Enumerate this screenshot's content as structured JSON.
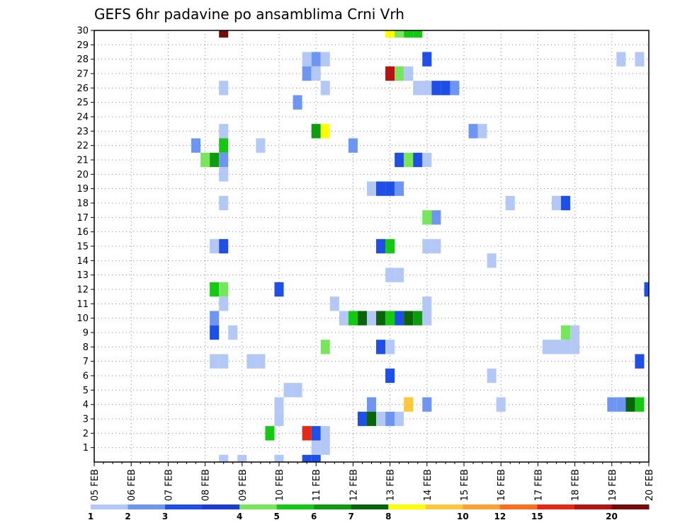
{
  "chart_data": {
    "type": "heatmap",
    "title": "GEFS 6hr padavine po ansamblima Crni Vrh",
    "xlabel": "",
    "ylabel": "",
    "x_tick_labels": [
      "05 FEB",
      "06 FEB",
      "07 FEB",
      "08 FEB",
      "09 FEB",
      "10 FEB",
      "11 FEB",
      "12 FEB",
      "13 FEB",
      "14 FEB",
      "15 FEB",
      "16 FEB",
      "17 FEB",
      "18 FEB",
      "19 FEB",
      "20 FEB"
    ],
    "y_tick_labels": [
      "1",
      "2",
      "3",
      "4",
      "5",
      "6",
      "7",
      "8",
      "9",
      "10",
      "11",
      "12",
      "13",
      "14",
      "15",
      "16",
      "17",
      "18",
      "19",
      "20",
      "21",
      "22",
      "23",
      "24",
      "25",
      "26",
      "27",
      "28",
      "29",
      "30"
    ],
    "x_unit": "6-hour step (4 per day) from 05 FEB",
    "xlim": [
      0,
      60
    ],
    "ylim": [
      0,
      30
    ],
    "grid": true,
    "legend": {
      "placement": "bottom",
      "bounds": [
        "1",
        "2",
        "3",
        "4",
        "5",
        "6",
        "7",
        "8",
        "10",
        "12",
        "15",
        "20"
      ],
      "colors": [
        "#b4c8f5",
        "#6e96f0",
        "#1e4fe6",
        "#1e3cd2",
        "#78e65a",
        "#14c814",
        "#0f9b0f",
        "#0a640a",
        "#ffff00",
        "#ffc83c",
        "#ffa032",
        "#ff6e1e",
        "#e62814",
        "#b41414",
        "#780a0a"
      ]
    },
    "cells": [
      [
        14,
        30,
        14
      ],
      [
        32,
        30,
        8
      ],
      [
        33,
        30,
        4
      ],
      [
        34,
        30,
        5
      ],
      [
        35,
        30,
        5
      ],
      [
        23,
        28,
        0
      ],
      [
        24,
        28,
        1
      ],
      [
        25,
        28,
        0
      ],
      [
        36,
        28,
        2
      ],
      [
        57,
        28,
        0
      ],
      [
        59,
        28,
        0
      ],
      [
        23,
        27,
        1
      ],
      [
        24,
        27,
        0
      ],
      [
        32,
        27,
        13
      ],
      [
        33,
        27,
        4
      ],
      [
        34,
        27,
        0
      ],
      [
        14,
        26,
        0
      ],
      [
        25,
        26,
        0
      ],
      [
        35,
        26,
        0
      ],
      [
        36,
        26,
        0
      ],
      [
        37,
        26,
        2
      ],
      [
        38,
        26,
        2
      ],
      [
        39,
        26,
        1
      ],
      [
        22,
        25,
        1
      ],
      [
        14,
        23,
        0
      ],
      [
        24,
        23,
        6
      ],
      [
        25,
        23,
        8
      ],
      [
        41,
        23,
        1
      ],
      [
        42,
        23,
        0
      ],
      [
        11,
        22,
        1
      ],
      [
        14,
        22,
        5
      ],
      [
        18,
        22,
        0
      ],
      [
        28,
        22,
        1
      ],
      [
        12,
        21,
        4
      ],
      [
        13,
        21,
        6
      ],
      [
        14,
        21,
        1
      ],
      [
        33,
        21,
        2
      ],
      [
        34,
        21,
        4
      ],
      [
        35,
        21,
        2
      ],
      [
        36,
        21,
        0
      ],
      [
        14,
        20,
        0
      ],
      [
        30,
        19,
        0
      ],
      [
        31,
        19,
        2
      ],
      [
        32,
        19,
        2
      ],
      [
        33,
        19,
        1
      ],
      [
        14,
        18,
        0
      ],
      [
        45,
        18,
        0
      ],
      [
        50,
        18,
        0
      ],
      [
        51,
        18,
        2
      ],
      [
        36,
        17,
        4
      ],
      [
        37,
        17,
        1
      ],
      [
        13,
        15,
        0
      ],
      [
        14,
        15,
        2
      ],
      [
        31,
        15,
        2
      ],
      [
        32,
        15,
        5
      ],
      [
        36,
        15,
        0
      ],
      [
        37,
        15,
        0
      ],
      [
        43,
        14,
        0
      ],
      [
        32,
        13,
        0
      ],
      [
        33,
        13,
        0
      ],
      [
        13,
        12,
        5
      ],
      [
        14,
        12,
        4
      ],
      [
        20,
        12,
        2
      ],
      [
        60,
        12,
        2
      ],
      [
        14,
        11,
        0
      ],
      [
        26,
        11,
        0
      ],
      [
        36,
        11,
        0
      ],
      [
        13,
        10,
        1
      ],
      [
        27,
        10,
        0
      ],
      [
        28,
        10,
        5
      ],
      [
        29,
        10,
        7
      ],
      [
        30,
        10,
        0
      ],
      [
        31,
        10,
        7
      ],
      [
        32,
        10,
        5
      ],
      [
        33,
        10,
        2
      ],
      [
        34,
        10,
        7
      ],
      [
        35,
        10,
        6
      ],
      [
        36,
        10,
        0
      ],
      [
        13,
        9,
        2
      ],
      [
        15,
        9,
        0
      ],
      [
        51,
        9,
        4
      ],
      [
        52,
        9,
        0
      ],
      [
        25,
        8,
        4
      ],
      [
        31,
        8,
        2
      ],
      [
        32,
        8,
        0
      ],
      [
        49,
        8,
        0
      ],
      [
        50,
        8,
        0
      ],
      [
        51,
        8,
        0
      ],
      [
        52,
        8,
        0
      ],
      [
        13,
        7,
        0
      ],
      [
        14,
        7,
        0
      ],
      [
        17,
        7,
        0
      ],
      [
        18,
        7,
        0
      ],
      [
        59,
        7,
        2
      ],
      [
        32,
        6,
        2
      ],
      [
        43,
        6,
        0
      ],
      [
        21,
        5,
        0
      ],
      [
        22,
        5,
        0
      ],
      [
        20,
        4,
        0
      ],
      [
        30,
        4,
        1
      ],
      [
        34,
        4,
        9
      ],
      [
        36,
        4,
        1
      ],
      [
        44,
        4,
        0
      ],
      [
        56,
        4,
        1
      ],
      [
        57,
        4,
        1
      ],
      [
        58,
        4,
        7
      ],
      [
        59,
        4,
        5
      ],
      [
        20,
        3,
        0
      ],
      [
        29,
        3,
        2
      ],
      [
        30,
        3,
        7
      ],
      [
        31,
        3,
        0
      ],
      [
        32,
        3,
        1
      ],
      [
        33,
        3,
        0
      ],
      [
        19,
        2,
        5
      ],
      [
        23,
        2,
        12
      ],
      [
        24,
        2,
        2
      ],
      [
        25,
        2,
        0
      ],
      [
        24,
        1,
        0
      ],
      [
        25,
        1,
        0
      ],
      [
        14,
        0,
        0
      ],
      [
        16,
        0,
        0
      ],
      [
        20,
        0,
        0
      ],
      [
        23,
        0,
        2
      ],
      [
        24,
        0,
        2
      ]
    ]
  }
}
